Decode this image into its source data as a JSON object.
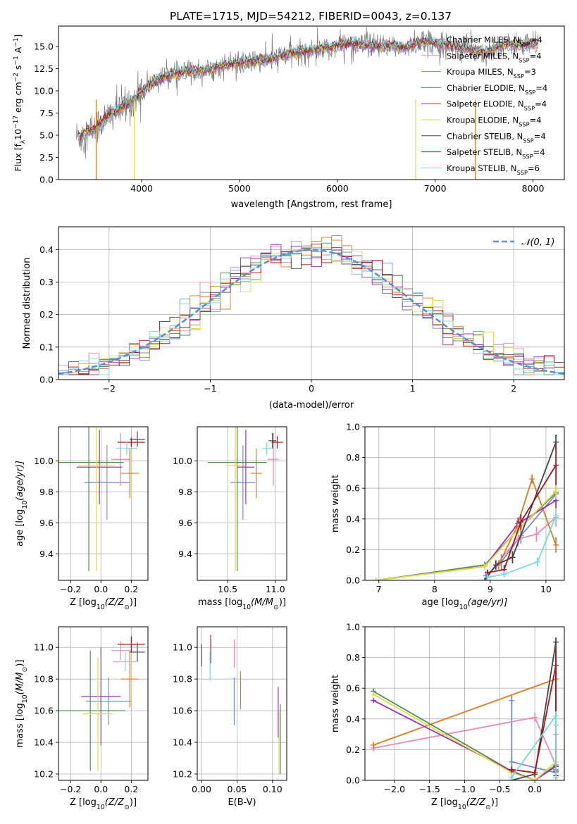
{
  "figure": {
    "title": "PLATE=1715, MJD=54212, FIBERID=0043, z=0.137"
  },
  "legend_models": [
    {
      "label": "Chabrier MILES, N",
      "sub": "SSP",
      "n": "=4",
      "color": "#6f8fd0"
    },
    {
      "label": "Salpeter MILES, N",
      "sub": "SSP",
      "n": "=4",
      "color": "#e78ab8"
    },
    {
      "label": "Kroupa MILES, N",
      "sub": "SSP",
      "n": "=3",
      "color": "#e07c20"
    },
    {
      "label": "Chabrier ELODIE, N",
      "sub": "SSP",
      "n": "=4",
      "color": "#5a8a5a"
    },
    {
      "label": "Salpeter ELODIE, N",
      "sub": "SSP",
      "n": "=4",
      "color": "#9b30c0"
    },
    {
      "label": "Kroupa ELODIE, N",
      "sub": "SSP",
      "n": "=4",
      "color": "#dede40"
    },
    {
      "label": "Chabrier STELIB, N",
      "sub": "SSP",
      "n": "=4",
      "color": "#444444"
    },
    {
      "label": "Salpeter STELIB, N",
      "sub": "SSP",
      "n": "=4",
      "color": "#b0101a"
    },
    {
      "label": "Kroupa STELIB, N",
      "sub": "SSP",
      "n": "=6",
      "color": "#78d8e0"
    }
  ],
  "chart_data": [
    {
      "id": "spectrum",
      "type": "line",
      "xlabel": "wavelength [Angstrom, rest frame]",
      "ylabel": "Flux [f",
      "ylabel_sub": "λ",
      "ylabel_rest": "10",
      "ylabel_sup": "−17",
      "ylabel_unit": " erg cm",
      "ylabel_sup2": "−2",
      "ylabel_unit2": " s",
      "ylabel_sup3": "−1",
      "ylabel_unit3": " A",
      "ylabel_sup4": "−1",
      "ylabel_end": "]",
      "xlim": [
        3150,
        8320
      ],
      "ylim": [
        0,
        17.3
      ],
      "xticks": [
        4000,
        5000,
        6000,
        7000,
        8000
      ],
      "yticks": [
        "0.0",
        "2.5",
        "5.0",
        "7.5",
        "10.0",
        "12.5",
        "15.0"
      ],
      "ytick_values": [
        0,
        2.5,
        5,
        7.5,
        10,
        12.5,
        15
      ],
      "data_points": [
        [
          3350,
          4.8
        ],
        [
          3500,
          5.6
        ],
        [
          3700,
          7.5
        ],
        [
          3900,
          8.8
        ],
        [
          4100,
          10.8
        ],
        [
          4300,
          11.9
        ],
        [
          4500,
          12.2
        ],
        [
          4700,
          12.4
        ],
        [
          4900,
          13.0
        ],
        [
          5100,
          13.2
        ],
        [
          5300,
          13.5
        ],
        [
          5500,
          14.2
        ],
        [
          5700,
          14.5
        ],
        [
          5900,
          14.8
        ],
        [
          6100,
          15.4
        ],
        [
          6300,
          15.1
        ],
        [
          6500,
          15.0
        ],
        [
          6700,
          14.9
        ],
        [
          6900,
          15.6
        ],
        [
          7100,
          15.2
        ],
        [
          7300,
          14.8
        ],
        [
          7500,
          14.3
        ],
        [
          7700,
          15.2
        ],
        [
          7900,
          15.2
        ],
        [
          8050,
          15.3
        ]
      ]
    },
    {
      "id": "residual-histogram",
      "type": "bar",
      "xlabel": "(data-model)/error",
      "ylabel": "Normed distribution",
      "xlim": [
        -2.5,
        2.5
      ],
      "ylim": [
        0,
        0.47
      ],
      "xticks": [
        "−2",
        "−1",
        "0",
        "1",
        "2"
      ],
      "xtick_values": [
        -2,
        -1,
        0,
        1,
        2
      ],
      "yticks": [
        "0.0",
        "0.1",
        "0.2",
        "0.3",
        "0.4"
      ],
      "ytick_values": [
        0,
        0.1,
        0.2,
        0.3,
        0.4
      ],
      "bin_width": 0.1,
      "reference_label": "𝒩(0, 1)",
      "reference_color": "#5b8fd8"
    },
    {
      "id": "age-vs-Z",
      "type": "scatter",
      "xlabel": "Z [log",
      "xlabel_sub": "10",
      "xlabel_rest": "(Z/Z",
      "xlabel_sub2": "⊙",
      "xlabel_end": ")]",
      "ylabel": "age  [log",
      "ylabel_sub": "10",
      "ylabel_rest": "(age/yr)]",
      "xlim": [
        -0.28,
        0.31
      ],
      "ylim": [
        9.23,
        10.22
      ],
      "xticks": [
        "−0.2",
        "0.0",
        "0.2"
      ],
      "xtick_values": [
        -0.2,
        0.0,
        0.2
      ],
      "yticks": [
        "9.4",
        "9.6",
        "9.8",
        "10.0"
      ],
      "ytick_values": [
        9.4,
        9.6,
        9.8,
        10.0
      ],
      "points": [
        {
          "x": 0.04,
          "y": 9.86,
          "xerr": 0.15,
          "yerr": 0.24,
          "c": 0
        },
        {
          "x": 0.13,
          "y": 10.01,
          "xerr": 0.06,
          "yerr": 0.17,
          "c": 1
        },
        {
          "x": 0.19,
          "y": 9.92,
          "xerr": 0.06,
          "yerr": 0.16,
          "c": 2
        },
        {
          "x": -0.08,
          "y": 9.99,
          "xerr": 0.23,
          "yerr": 0.7,
          "c": 3
        },
        {
          "x": -0.01,
          "y": 9.96,
          "xerr": 0.15,
          "yerr": 0.24,
          "c": 4
        },
        {
          "x": -0.03,
          "y": 9.97,
          "xerr": 0.12,
          "yerr": 0.68,
          "c": 5
        },
        {
          "x": 0.24,
          "y": 10.14,
          "xerr": 0.05,
          "yerr": 0.05,
          "c": 6
        },
        {
          "x": 0.2,
          "y": 10.12,
          "xerr": 0.09,
          "yerr": 0.03,
          "c": 7
        },
        {
          "x": 0.17,
          "y": 10.08,
          "xerr": 0.07,
          "yerr": 0.04,
          "c": 8
        }
      ]
    },
    {
      "id": "age-vs-mass",
      "type": "scatter",
      "xlabel": "mass [log",
      "xlabel_sub": "10",
      "xlabel_rest": "(M/M",
      "xlabel_sub2": "⊙",
      "xlabel_end": ")]",
      "xlim": [
        10.18,
        11.12
      ],
      "ylim": [
        9.23,
        10.22
      ],
      "xticks": [
        "10.5",
        "11.0"
      ],
      "xtick_values": [
        10.5,
        11.0
      ],
      "yticks": [
        "9.4",
        "9.6",
        "9.8",
        "10.0"
      ],
      "ytick_values": [
        9.4,
        9.6,
        9.8,
        10.0
      ],
      "points": [
        {
          "x": 10.66,
          "y": 9.86,
          "xerr": 0.13,
          "yerr": 0.24,
          "c": 0
        },
        {
          "x": 10.98,
          "y": 10.01,
          "xerr": 0.06,
          "yerr": 0.17,
          "c": 1
        },
        {
          "x": 10.8,
          "y": 9.92,
          "xerr": 0.06,
          "yerr": 0.16,
          "c": 2
        },
        {
          "x": 10.6,
          "y": 9.99,
          "xerr": 0.31,
          "yerr": 0.7,
          "c": 3
        },
        {
          "x": 10.69,
          "y": 9.96,
          "xerr": 0.09,
          "yerr": 0.24,
          "c": 4
        },
        {
          "x": 10.58,
          "y": 9.97,
          "xerr": 0.1,
          "yerr": 0.68,
          "c": 5
        },
        {
          "x": 10.97,
          "y": 10.13,
          "xerr": 0.04,
          "yerr": 0.05,
          "c": 6
        },
        {
          "x": 11.02,
          "y": 10.12,
          "xerr": 0.06,
          "yerr": 0.04,
          "c": 7
        },
        {
          "x": 10.91,
          "y": 10.08,
          "xerr": 0.05,
          "yerr": 0.04,
          "c": 8
        }
      ]
    },
    {
      "id": "mass-weight-vs-age",
      "type": "line",
      "xlabel": "age  [log",
      "xlabel_sub": "10",
      "xlabel_rest": "(age/yr)]",
      "ylabel": "mass weight",
      "xlim": [
        6.75,
        10.33
      ],
      "ylim": [
        0,
        1.0
      ],
      "xticks": [
        "7",
        "8",
        "9",
        "10"
      ],
      "xtick_values": [
        7,
        8,
        9,
        10
      ],
      "yticks": [
        "0.0",
        "0.2",
        "0.4",
        "0.6",
        "0.8",
        "1.0"
      ],
      "ytick_values": [
        0,
        0.2,
        0.4,
        0.6,
        0.8,
        1.0
      ],
      "series": [
        {
          "c": 0,
          "x": [
            8.92,
            9.2,
            9.55,
            10.18
          ],
          "y": [
            0.03,
            0.12,
            0.29,
            0.56
          ],
          "yerr": [
            0.03,
            0.05,
            0.05,
            0.05
          ]
        },
        {
          "c": 1,
          "x": [
            9.1,
            9.5,
            9.83,
            10.18
          ],
          "y": [
            0.1,
            0.27,
            0.3,
            0.41
          ],
          "yerr": [
            0.03,
            0.05,
            0.05,
            0.06
          ]
        },
        {
          "c": 2,
          "x": [
            9.15,
            9.48,
            9.75,
            10.18
          ],
          "y": [
            0.1,
            0.35,
            0.66,
            0.23
          ],
          "yerr": [
            0.03,
            0.04,
            0.03,
            0.05
          ]
        },
        {
          "c": 3,
          "x": [
            6.95,
            8.9,
            9.5,
            10.18
          ],
          "y": [
            0.0,
            0.1,
            0.33,
            0.57
          ],
          "yerr": [
            0.0,
            0.02,
            0.04,
            0.05
          ]
        },
        {
          "c": 4,
          "x": [
            6.95,
            8.9,
            9.5,
            10.18
          ],
          "y": [
            0.0,
            0.09,
            0.37,
            0.52
          ],
          "yerr": [
            0.0,
            0.02,
            0.04,
            0.05
          ]
        },
        {
          "c": 5,
          "x": [
            6.95,
            8.9,
            9.5,
            10.18
          ],
          "y": [
            0.0,
            0.09,
            0.33,
            0.58
          ],
          "yerr": [
            0.0,
            0.02,
            0.04,
            0.05
          ]
        },
        {
          "c": 6,
          "x": [
            8.9,
            9.1,
            9.4,
            10.18
          ],
          "y": [
            0.0,
            0.1,
            0.15,
            0.9
          ],
          "yerr": [
            0.0,
            0.03,
            0.04,
            0.05
          ]
        },
        {
          "c": 7,
          "x": [
            8.95,
            9.25,
            9.55,
            10.18
          ],
          "y": [
            0.05,
            0.07,
            0.38,
            0.75
          ],
          "yerr": [
            0.02,
            0.03,
            0.05,
            0.13
          ]
        },
        {
          "c": 8,
          "x": [
            8.95,
            9.25,
            9.85,
            10.18
          ],
          "y": [
            0.02,
            0.04,
            0.12,
            0.42
          ],
          "yerr": [
            0.02,
            0.02,
            0.03,
            0.05
          ]
        }
      ]
    },
    {
      "id": "mass-vs-Z",
      "type": "scatter",
      "xlabel": "Z [log",
      "xlabel_sub": "10",
      "xlabel_rest": "(Z/Z",
      "xlabel_sub2": "⊙",
      "xlabel_end": ")]",
      "ylabel": "mass [log",
      "ylabel_sub": "10",
      "ylabel_rest": "(M/M",
      "ylabel_sub2": "⊙",
      "ylabel_end": ")]",
      "xlim": [
        -0.28,
        0.31
      ],
      "ylim": [
        10.16,
        11.13
      ],
      "xticks": [
        "−0.2",
        "0.0",
        "0.2"
      ],
      "xtick_values": [
        -0.2,
        0.0,
        0.2
      ],
      "yticks": [
        "10.2",
        "10.4",
        "10.6",
        "10.8",
        "11.0"
      ],
      "ytick_values": [
        10.2,
        10.4,
        10.6,
        10.8,
        11.0
      ],
      "points": [
        {
          "x": 0.05,
          "y": 10.66,
          "xerr": 0.15,
          "yerr": 0.15,
          "c": 0
        },
        {
          "x": 0.13,
          "y": 10.98,
          "xerr": 0.06,
          "yerr": 0.06,
          "c": 1
        },
        {
          "x": 0.19,
          "y": 10.8,
          "xerr": 0.06,
          "yerr": 0.18,
          "c": 2
        },
        {
          "x": -0.07,
          "y": 10.6,
          "xerr": 0.23,
          "yerr": 0.38,
          "c": 3
        },
        {
          "x": 0.0,
          "y": 10.69,
          "xerr": 0.13,
          "yerr": 0.31,
          "c": 4
        },
        {
          "x": -0.02,
          "y": 10.58,
          "xerr": 0.1,
          "yerr": 0.36,
          "c": 5
        },
        {
          "x": 0.24,
          "y": 10.97,
          "xerr": 0.05,
          "yerr": 0.06,
          "c": 6
        },
        {
          "x": 0.2,
          "y": 11.02,
          "xerr": 0.09,
          "yerr": 0.05,
          "c": 7
        },
        {
          "x": 0.16,
          "y": 10.91,
          "xerr": 0.08,
          "yerr": 0.06,
          "c": 8
        }
      ]
    },
    {
      "id": "mass-vs-EBV",
      "type": "scatter",
      "xlabel": "E(B-V)",
      "xlim": [
        -0.006,
        0.12
      ],
      "ylim": [
        10.16,
        11.13
      ],
      "xticks": [
        "0.00",
        "0.05",
        "0.10"
      ],
      "xtick_values": [
        0.0,
        0.05,
        0.1
      ],
      "yticks": [
        "10.2",
        "10.4",
        "10.6",
        "10.8",
        "11.0"
      ],
      "ytick_values": [
        10.2,
        10.4,
        10.6,
        10.8,
        11.0
      ],
      "points": [
        {
          "x": 0.046,
          "y": 10.66,
          "yerr": 0.15,
          "c": 0
        },
        {
          "x": 0.046,
          "y": 10.96,
          "yerr": 0.09,
          "c": 1
        },
        {
          "x": 0.055,
          "y": 10.73,
          "yerr": 0.12,
          "c": 2
        },
        {
          "x": 0.111,
          "y": 10.42,
          "yerr": 0.22,
          "c": 3
        },
        {
          "x": 0.108,
          "y": 10.59,
          "yerr": 0.16,
          "c": 4
        },
        {
          "x": 0.109,
          "y": 10.4,
          "yerr": 0.2,
          "c": 5
        },
        {
          "x": 0.0,
          "y": 10.95,
          "yerr": 0.07,
          "c": 6
        },
        {
          "x": 0.013,
          "y": 10.99,
          "yerr": 0.09,
          "c": 7
        },
        {
          "x": 0.012,
          "y": 10.88,
          "yerr": 0.09,
          "c": 8
        }
      ]
    },
    {
      "id": "mass-weight-vs-Z",
      "type": "line",
      "xlabel": "Z [log",
      "xlabel_sub": "10",
      "xlabel_rest": "(Z/Z",
      "xlabel_sub2": "⊙",
      "xlabel_end": ")]",
      "ylabel": "mass weight",
      "xlim": [
        -2.42,
        0.42
      ],
      "ylim": [
        0,
        1.0
      ],
      "xticks": [
        "−2.0",
        "−1.5",
        "−1.0",
        "−0.5",
        "0.0"
      ],
      "xtick_values": [
        -2.0,
        -1.5,
        -1.0,
        -0.5,
        0.0
      ],
      "yticks": [
        "0.0",
        "0.2",
        "0.4",
        "0.6",
        "0.8",
        "1.0"
      ],
      "ytick_values": [
        0,
        0.2,
        0.4,
        0.6,
        0.8,
        1.0
      ],
      "series": [
        {
          "c": 0,
          "x": [
            -0.33,
            -0.33,
            0.3,
            0.3
          ],
          "y": [
            0.52,
            0.12,
            0.05,
            0.07
          ],
          "yerr": [
            0.03,
            0.03,
            0.02,
            0.02
          ]
        },
        {
          "c": 1,
          "x": [
            -2.3,
            0.0,
            0.3,
            0.3
          ],
          "y": [
            0.21,
            0.41,
            0.1,
            0.3
          ],
          "yerr": [
            0.02,
            0.03,
            0.02,
            0.03
          ]
        },
        {
          "c": 2,
          "x": [
            -2.3,
            0.3,
            0.3
          ],
          "y": [
            0.23,
            0.66,
            0.1
          ],
          "yerr": [
            0.02,
            0.03,
            0.02
          ]
        },
        {
          "c": 3,
          "x": [
            -2.3,
            -0.33,
            0.0,
            0.3
          ],
          "y": [
            0.58,
            0.06,
            0.0,
            0.1
          ],
          "yerr": [
            0.01,
            0.02,
            0.0,
            0.02
          ]
        },
        {
          "c": 4,
          "x": [
            -2.3,
            -0.33,
            0.0,
            0.3
          ],
          "y": [
            0.52,
            0.06,
            0.0,
            0.09
          ],
          "yerr": [
            0.01,
            0.02,
            0.0,
            0.02
          ]
        },
        {
          "c": 5,
          "x": [
            -2.3,
            -0.33,
            0.0,
            0.3
          ],
          "y": [
            0.56,
            0.05,
            0.0,
            0.12
          ],
          "yerr": [
            0.01,
            0.02,
            0.0,
            0.02
          ]
        },
        {
          "c": 6,
          "x": [
            -0.33,
            0.0,
            0.3,
            0.3
          ],
          "y": [
            0.0,
            0.04,
            0.9,
            0.06
          ],
          "yerr": [
            0.02,
            0.02,
            0.03,
            0.03
          ]
        },
        {
          "c": 7,
          "x": [
            -0.33,
            0.0,
            0.3,
            0.3
          ],
          "y": [
            0.07,
            0.05,
            0.75,
            0.03
          ],
          "yerr": [
            0.02,
            0.02,
            0.1,
            0.02
          ]
        },
        {
          "c": 8,
          "x": [
            -0.33,
            0.3,
            0.3,
            0.3
          ],
          "y": [
            0.02,
            0.42,
            0.36,
            0.02
          ],
          "yerr": [
            0.02,
            0.03,
            0.05,
            0.02
          ]
        }
      ]
    }
  ]
}
